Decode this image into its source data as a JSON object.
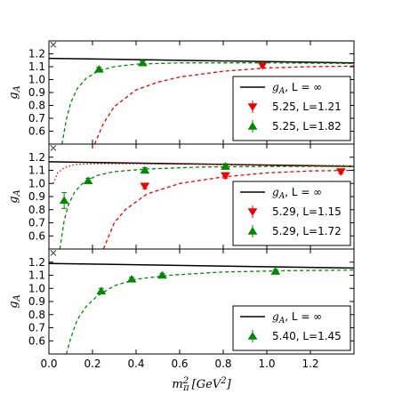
{
  "chart_data": [
    {
      "type": "scatter",
      "ylabel": "g_A",
      "xlim": [
        0,
        1.4
      ],
      "ylim": [
        0.5,
        1.3
      ],
      "yticks": [
        0.6,
        0.7,
        0.8,
        0.9,
        1.0,
        1.1,
        1.2
      ],
      "cross_marker": {
        "x": 0.02,
        "y": 1.27
      },
      "legend": {
        "placement": "right",
        "infinity_label": "g_A, L = ∞"
      },
      "infinity_curve": [
        [
          0.0,
          1.165
        ],
        [
          1.4,
          1.13
        ]
      ],
      "series": [
        {
          "name": "5.25, L=1.21",
          "color": "#ee0000",
          "marker": "triangle-down",
          "points": [
            {
              "x": 0.98,
              "y": 1.11,
              "err": 0.015
            }
          ],
          "fit_curve": [
            [
              0.21,
              0.5
            ],
            [
              0.25,
              0.66
            ],
            [
              0.3,
              0.79
            ],
            [
              0.4,
              0.92
            ],
            [
              0.5,
              0.98
            ],
            [
              0.6,
              1.02
            ],
            [
              0.8,
              1.065
            ],
            [
              1.0,
              1.09
            ],
            [
              1.2,
              1.1
            ],
            [
              1.4,
              1.105
            ]
          ]
        },
        {
          "name": "5.25, L=1.82",
          "color": "#008800",
          "marker": "triangle-up",
          "points": [
            {
              "x": 0.23,
              "y": 1.08,
              "err": 0.015
            },
            {
              "x": 0.43,
              "y": 1.13,
              "err": 0.015
            }
          ],
          "fit_curve": [
            [
              0.06,
              0.5
            ],
            [
              0.08,
              0.69
            ],
            [
              0.1,
              0.82
            ],
            [
              0.13,
              0.93
            ],
            [
              0.17,
              1.01
            ],
            [
              0.23,
              1.07
            ],
            [
              0.3,
              1.1
            ],
            [
              0.4,
              1.12
            ],
            [
              0.6,
              1.13
            ],
            [
              1.0,
              1.13
            ],
            [
              1.4,
              1.125
            ]
          ]
        }
      ]
    },
    {
      "type": "scatter",
      "ylabel": "g_A",
      "xlim": [
        0,
        1.4
      ],
      "ylim": [
        0.5,
        1.3
      ],
      "yticks": [
        0.6,
        0.7,
        0.8,
        0.9,
        1.0,
        1.1,
        1.2
      ],
      "cross_marker": {
        "x": 0.02,
        "y": 1.27
      },
      "legend": {
        "placement": "right",
        "infinity_label": "g_A, L = ∞"
      },
      "infinity_curve": [
        [
          0.0,
          1.165
        ],
        [
          1.4,
          1.13
        ]
      ],
      "series": [
        {
          "name": "5.29, L=1.15",
          "color": "#ee0000",
          "marker": "triangle-down",
          "points": [
            {
              "x": 0.44,
              "y": 0.98,
              "err": 0.02
            },
            {
              "x": 0.81,
              "y": 1.06,
              "err": 0.02
            },
            {
              "x": 1.34,
              "y": 1.09,
              "err": 0.015
            }
          ],
          "fit_curve": [
            [
              0.25,
              0.5
            ],
            [
              0.3,
              0.7
            ],
            [
              0.35,
              0.8
            ],
            [
              0.45,
              0.92
            ],
            [
              0.6,
              1.0
            ],
            [
              0.8,
              1.05
            ],
            [
              1.0,
              1.08
            ],
            [
              1.2,
              1.095
            ],
            [
              1.4,
              1.1
            ]
          ]
        },
        {
          "name": "5.29, L=1.72",
          "color": "#008800",
          "marker": "triangle-up",
          "points": [
            {
              "x": 0.07,
              "y": 0.87,
              "err": 0.06
            },
            {
              "x": 0.18,
              "y": 1.02,
              "err": 0.02
            },
            {
              "x": 0.44,
              "y": 1.1,
              "err": 0.02
            },
            {
              "x": 0.81,
              "y": 1.13,
              "err": 0.02
            }
          ],
          "fit_curve": [
            [
              0.05,
              0.5
            ],
            [
              0.07,
              0.72
            ],
            [
              0.09,
              0.84
            ],
            [
              0.12,
              0.94
            ],
            [
              0.16,
              1.01
            ],
            [
              0.22,
              1.06
            ],
            [
              0.3,
              1.09
            ],
            [
              0.45,
              1.11
            ],
            [
              0.7,
              1.125
            ],
            [
              1.0,
              1.13
            ],
            [
              1.4,
              1.13
            ]
          ]
        }
      ],
      "extra_dotted": {
        "color": "#ee0000",
        "curve": [
          [
            0.02,
            1.0
          ],
          [
            0.04,
            1.08
          ],
          [
            0.07,
            1.12
          ],
          [
            0.12,
            1.145
          ],
          [
            0.2,
            1.15
          ],
          [
            0.4,
            1.15
          ],
          [
            0.8,
            1.145
          ],
          [
            1.4,
            1.135
          ]
        ]
      }
    },
    {
      "type": "scatter",
      "ylabel": "g_A",
      "xlabel": "m_π^2 [GeV^2]",
      "xlim": [
        0,
        1.4
      ],
      "ylim": [
        0.5,
        1.3
      ],
      "xticks": [
        0.0,
        0.2,
        0.4,
        0.6,
        0.8,
        1.0,
        1.2
      ],
      "yticks": [
        0.6,
        0.7,
        0.8,
        0.9,
        1.0,
        1.1,
        1.2
      ],
      "cross_marker": {
        "x": 0.02,
        "y": 1.27
      },
      "legend": {
        "placement": "right",
        "infinity_label": "g_A, L = ∞"
      },
      "infinity_curve": [
        [
          0.0,
          1.19
        ],
        [
          1.4,
          1.155
        ]
      ],
      "series": [
        {
          "name": "5.40, L=1.45",
          "color": "#008800",
          "marker": "triangle-up",
          "points": [
            {
              "x": 0.24,
              "y": 0.98,
              "err": 0.02
            },
            {
              "x": 0.38,
              "y": 1.07,
              "err": 0.015
            },
            {
              "x": 0.52,
              "y": 1.1,
              "err": 0.015
            },
            {
              "x": 1.04,
              "y": 1.13,
              "err": 0.015
            }
          ],
          "fit_curve": [
            [
              0.08,
              0.5
            ],
            [
              0.1,
              0.62
            ],
            [
              0.13,
              0.76
            ],
            [
              0.17,
              0.86
            ],
            [
              0.22,
              0.94
            ],
            [
              0.3,
              1.02
            ],
            [
              0.4,
              1.07
            ],
            [
              0.55,
              1.1
            ],
            [
              0.8,
              1.125
            ],
            [
              1.1,
              1.135
            ],
            [
              1.4,
              1.14
            ]
          ]
        }
      ]
    }
  ]
}
